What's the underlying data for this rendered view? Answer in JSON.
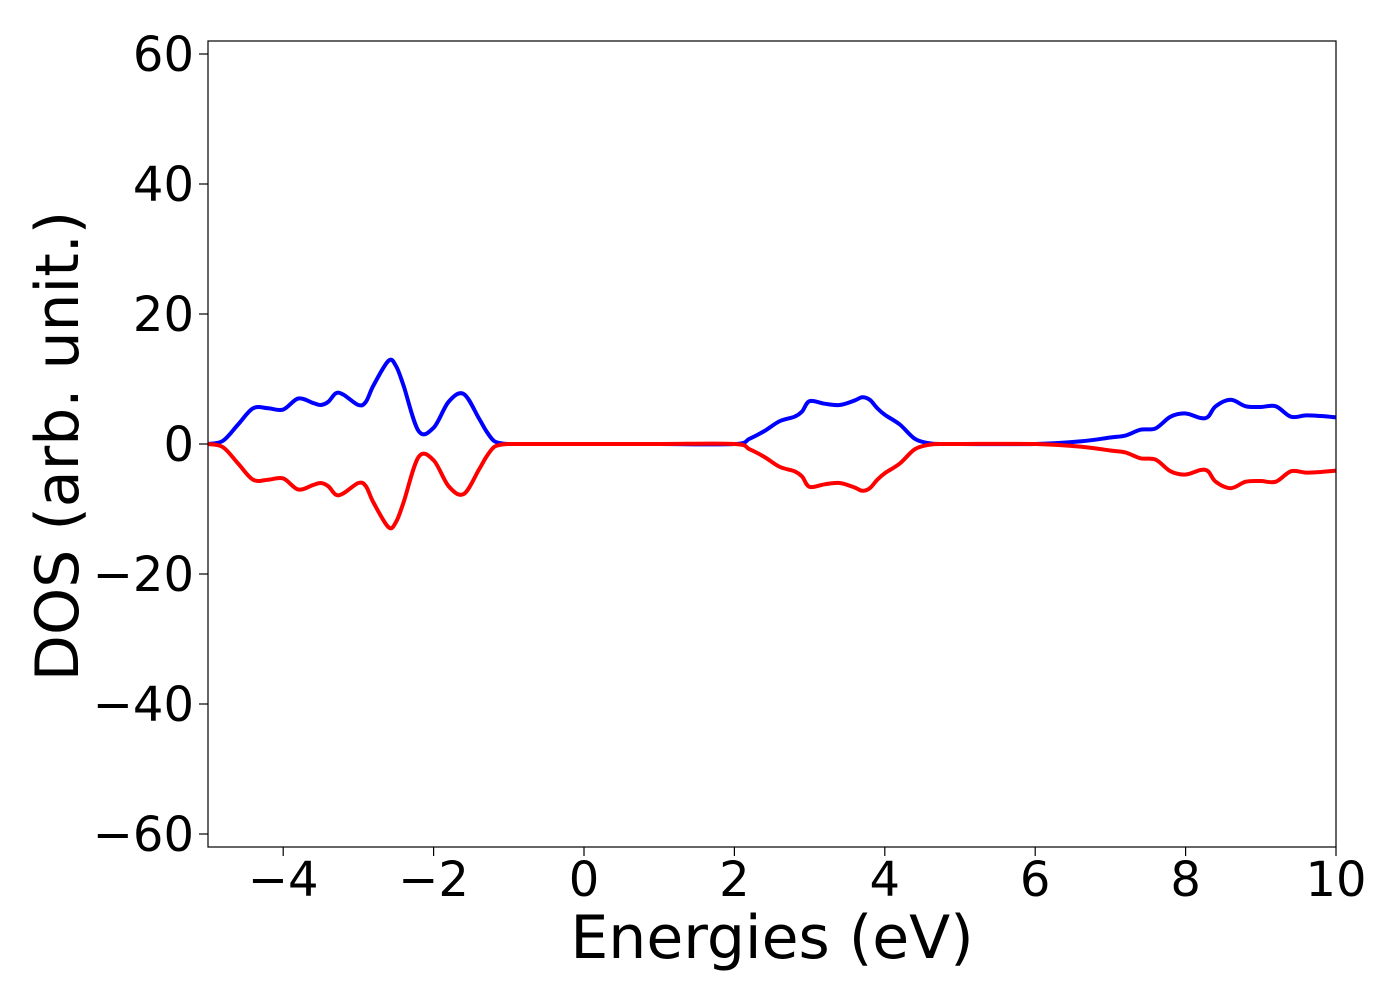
{
  "chart_data": {
    "type": "line",
    "title": "",
    "xlabel": "Energies (eV)",
    "ylabel": "DOS (arb. unit.)",
    "xlim": [
      -5,
      10
    ],
    "ylim": [
      -62,
      62
    ],
    "xticks": [
      -4,
      -2,
      0,
      2,
      4,
      6,
      8,
      10
    ],
    "xtick_labels": [
      "−4",
      "−2",
      "0",
      "2",
      "4",
      "6",
      "8",
      "10"
    ],
    "yticks": [
      -60,
      -40,
      -20,
      0,
      20,
      40,
      60
    ],
    "ytick_labels": [
      "−60",
      "−40",
      "−20",
      "0",
      "20",
      "40",
      "60"
    ],
    "grid": false,
    "legend": "none",
    "x": [
      -5.0,
      -4.8,
      -4.6,
      -4.4,
      -4.2,
      -4.0,
      -3.8,
      -3.6,
      -3.5,
      -3.4,
      -3.3,
      -3.2,
      -3.0,
      -2.9,
      -2.8,
      -2.6,
      -2.5,
      -2.4,
      -2.2,
      -2.0,
      -1.8,
      -1.6,
      -1.4,
      -1.3,
      -1.2,
      -1.1,
      -1.0,
      -0.8,
      -0.6,
      0.0,
      1.0,
      2.0,
      2.2,
      2.4,
      2.6,
      2.8,
      2.9,
      3.0,
      3.2,
      3.4,
      3.6,
      3.7,
      3.8,
      3.9,
      4.0,
      4.2,
      4.4,
      4.6,
      4.8,
      5.0,
      6.0,
      6.6,
      7.0,
      7.2,
      7.4,
      7.6,
      7.8,
      8.0,
      8.2,
      8.3,
      8.4,
      8.6,
      8.8,
      9.0,
      9.2,
      9.4,
      9.6,
      9.8,
      10.0
    ],
    "series": [
      {
        "color": "#0000ff",
        "values": [
          0.0,
          0.5,
          3.0,
          5.5,
          5.5,
          5.3,
          7.0,
          6.3,
          6.0,
          6.5,
          7.8,
          7.6,
          6.0,
          6.5,
          9.0,
          12.8,
          12.0,
          9.0,
          2.0,
          2.5,
          6.5,
          7.7,
          4.0,
          2.0,
          0.5,
          0.1,
          0.0,
          0.0,
          0.0,
          0.0,
          0.0,
          0.0,
          0.8,
          2.0,
          3.5,
          4.2,
          5.0,
          6.6,
          6.2,
          6.0,
          6.7,
          7.2,
          6.8,
          5.5,
          4.5,
          3.0,
          0.8,
          0.1,
          0.0,
          0.0,
          0.0,
          0.4,
          1.0,
          1.3,
          2.2,
          2.4,
          4.2,
          4.7,
          4.0,
          4.2,
          5.8,
          6.8,
          5.8,
          5.7,
          5.8,
          4.2,
          4.4,
          4.3,
          4.1
        ]
      },
      {
        "color": "#ff0000",
        "values": [
          0.0,
          -0.5,
          -3.0,
          -5.5,
          -5.5,
          -5.3,
          -7.0,
          -6.3,
          -6.0,
          -6.5,
          -7.8,
          -7.6,
          -6.0,
          -6.5,
          -9.0,
          -12.8,
          -12.0,
          -9.0,
          -2.0,
          -2.5,
          -6.5,
          -7.7,
          -4.0,
          -2.0,
          -0.5,
          -0.1,
          0.0,
          0.0,
          0.0,
          0.0,
          0.0,
          0.0,
          -0.8,
          -2.0,
          -3.5,
          -4.2,
          -5.0,
          -6.6,
          -6.2,
          -6.0,
          -6.7,
          -7.2,
          -6.8,
          -5.5,
          -4.5,
          -3.0,
          -0.8,
          -0.1,
          0.0,
          0.0,
          0.0,
          -0.4,
          -1.0,
          -1.3,
          -2.2,
          -2.4,
          -4.2,
          -4.7,
          -4.0,
          -4.2,
          -5.8,
          -6.8,
          -5.8,
          -5.7,
          -5.8,
          -4.2,
          -4.4,
          -4.3,
          -4.1
        ]
      }
    ]
  }
}
